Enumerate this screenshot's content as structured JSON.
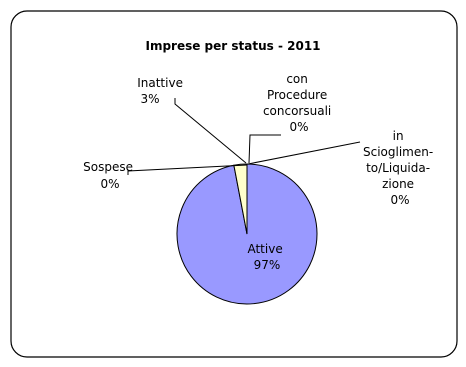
{
  "chart_data": {
    "type": "pie",
    "title": "Imprese per status - 2011",
    "slices": [
      {
        "label": "Attive",
        "percent_label": "97%",
        "value": 97
      },
      {
        "label": "Inattive",
        "percent_label": "3%",
        "value": 3
      },
      {
        "label": "Sospese",
        "percent_label": "0%",
        "value": 0
      },
      {
        "label": "con Procedure concorsuali",
        "percent_label": "0%",
        "value": 0
      },
      {
        "label": "in Scioglimento/Liquidazione",
        "percent_label": "0%",
        "value": 0
      }
    ],
    "label_lines": {
      "attive": [
        "Attive",
        "97%"
      ],
      "inattive": [
        "Inattive",
        "3%"
      ],
      "sospese": [
        "Sospese",
        "0%"
      ],
      "procedure": [
        "con",
        "Procedure",
        "concorsuali",
        "0%"
      ],
      "scioglimento": [
        "in",
        "Scioglimen-",
        "to/Liquida-",
        "zione",
        "0%"
      ]
    },
    "colors": {
      "attive": "#9999FF",
      "inattive": "#FFFFCC",
      "outline": "#000000"
    }
  }
}
